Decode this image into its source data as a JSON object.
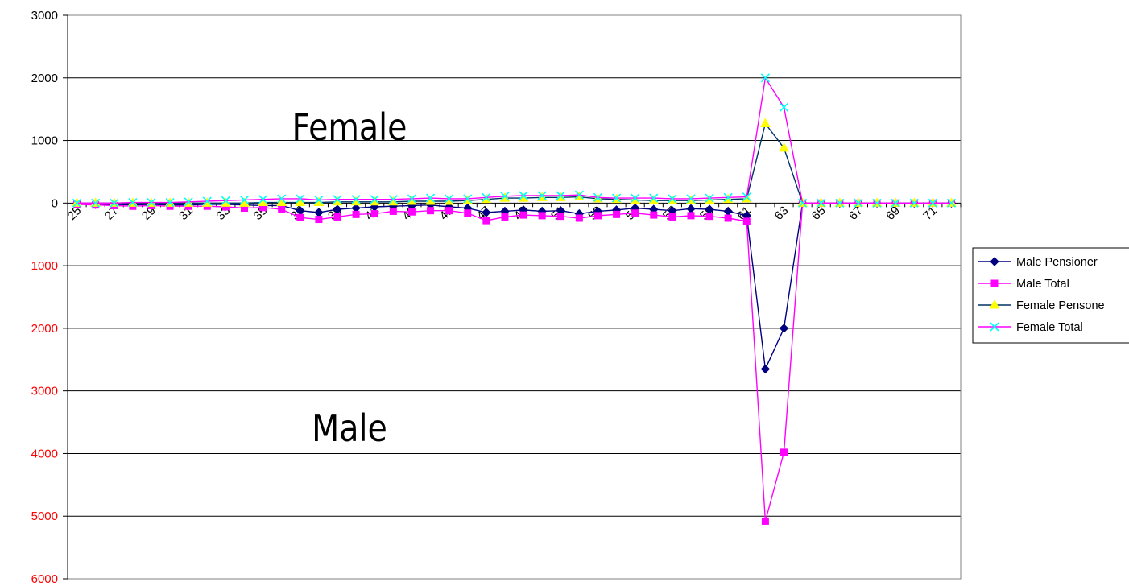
{
  "chart_data": {
    "type": "line",
    "x": [
      25,
      26,
      27,
      28,
      29,
      30,
      31,
      32,
      33,
      34,
      35,
      36,
      37,
      38,
      39,
      40,
      41,
      42,
      43,
      44,
      45,
      46,
      47,
      48,
      49,
      50,
      51,
      52,
      53,
      54,
      55,
      56,
      57,
      58,
      59,
      60,
      61,
      62,
      63,
      64,
      65,
      66,
      67,
      68,
      69,
      70,
      71,
      72
    ],
    "x_tick_labels": [
      "25",
      "27",
      "29",
      "31",
      "33",
      "35",
      "37",
      "39",
      "41",
      "43",
      "45",
      "47",
      "49",
      "51",
      "53",
      "55",
      "57",
      "59",
      "61",
      "63",
      "65",
      "67",
      "69",
      "71"
    ],
    "ylim": [
      -6000,
      3000
    ],
    "y_ticks": [
      {
        "value": 3000,
        "label": "3000",
        "color": "#000000"
      },
      {
        "value": 2000,
        "label": "2000",
        "color": "#000000"
      },
      {
        "value": 1000,
        "label": "1000",
        "color": "#000000"
      },
      {
        "value": 0,
        "label": "0",
        "color": "#000000"
      },
      {
        "value": -1000,
        "label": "1000",
        "color": "#ff0000"
      },
      {
        "value": -2000,
        "label": "2000",
        "color": "#ff0000"
      },
      {
        "value": -3000,
        "label": "3000",
        "color": "#ff0000"
      },
      {
        "value": -4000,
        "label": "4000",
        "color": "#ff0000"
      },
      {
        "value": -5000,
        "label": "5000",
        "color": "#ff0000"
      },
      {
        "value": -6000,
        "label": "6000",
        "color": "#ff0000"
      }
    ],
    "grid": "horizontal",
    "legend_position": "right",
    "series": [
      {
        "name": "Male Pensioner",
        "color": "#000080",
        "marker": "diamond",
        "values": [
          -10,
          -20,
          -20,
          -30,
          -20,
          -30,
          -30,
          -20,
          -20,
          -30,
          -40,
          -40,
          -120,
          -150,
          -100,
          -80,
          -60,
          -50,
          -40,
          -30,
          -60,
          -80,
          -150,
          -130,
          -110,
          -130,
          -120,
          -170,
          -130,
          -110,
          -80,
          -100,
          -120,
          -90,
          -100,
          -130,
          -200,
          -2650,
          -2000,
          0,
          0,
          0,
          0,
          0,
          0,
          0,
          0,
          0
        ]
      },
      {
        "name": "Male Total",
        "color": "#ff00ff",
        "marker": "square",
        "values": [
          -20,
          -30,
          -40,
          -50,
          -40,
          -50,
          -50,
          -50,
          -60,
          -80,
          -70,
          -100,
          -230,
          -260,
          -220,
          -180,
          -170,
          -130,
          -140,
          -120,
          -120,
          -160,
          -280,
          -220,
          -190,
          -200,
          -210,
          -240,
          -200,
          -180,
          -160,
          -190,
          -220,
          -200,
          -210,
          -240,
          -290,
          -5080,
          -3980,
          0,
          0,
          0,
          0,
          0,
          0,
          0,
          0,
          0
        ]
      },
      {
        "name": "Female Pensone",
        "color": "#003366",
        "marker": "triangle",
        "marker_fill": "#ffff00",
        "values": [
          0,
          0,
          0,
          0,
          0,
          0,
          0,
          0,
          0,
          0,
          10,
          10,
          10,
          10,
          20,
          20,
          20,
          20,
          30,
          30,
          30,
          40,
          60,
          80,
          80,
          90,
          90,
          100,
          70,
          60,
          50,
          40,
          40,
          40,
          50,
          60,
          70,
          1270,
          880,
          0,
          0,
          0,
          0,
          0,
          0,
          0,
          0,
          0
        ]
      },
      {
        "name": "Female Total",
        "color": "#ff00ff",
        "marker": "x",
        "marker_color": "#00ffff",
        "values": [
          0,
          0,
          0,
          10,
          10,
          10,
          20,
          30,
          40,
          50,
          60,
          70,
          70,
          50,
          60,
          60,
          60,
          60,
          70,
          80,
          70,
          70,
          90,
          110,
          120,
          120,
          120,
          130,
          90,
          80,
          80,
          80,
          70,
          70,
          80,
          90,
          100,
          2000,
          1530,
          0,
          0,
          0,
          0,
          0,
          0,
          0,
          0,
          0
        ]
      }
    ],
    "annotations": [
      {
        "text": "Female"
      },
      {
        "text": "Male"
      }
    ]
  }
}
